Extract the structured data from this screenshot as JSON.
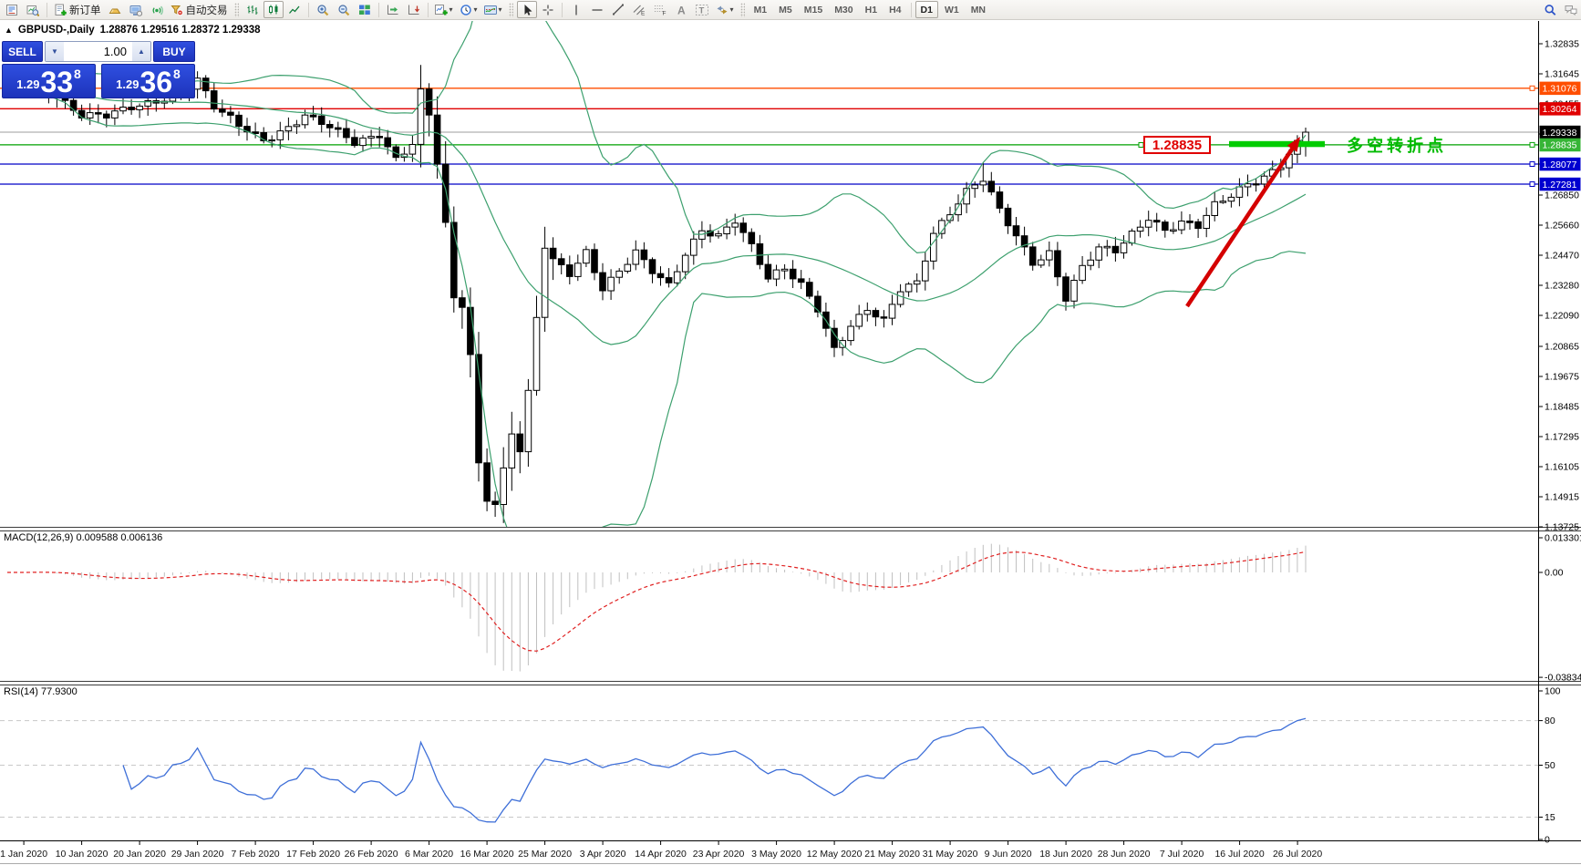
{
  "toolbar": {
    "items": [
      {
        "type": "icon",
        "name": "market-watch-icon"
      },
      {
        "type": "icon",
        "name": "data-window-icon"
      },
      {
        "type": "sep"
      },
      {
        "type": "icon-label",
        "name": "new-order-icon",
        "label": "新订单"
      },
      {
        "type": "icon",
        "name": "metaquotes-icon"
      },
      {
        "type": "icon",
        "name": "terminal-icon"
      },
      {
        "type": "icon",
        "name": "signals-icon"
      },
      {
        "type": "icon-label",
        "name": "autotrading-icon",
        "label": "自动交易"
      },
      {
        "type": "grip"
      },
      {
        "type": "icon",
        "name": "bar-chart-icon"
      },
      {
        "type": "icon",
        "name": "candlestick-chart-icon",
        "active": true
      },
      {
        "type": "icon",
        "name": "line-chart-icon"
      },
      {
        "type": "sep"
      },
      {
        "type": "icon",
        "name": "zoom-in-icon"
      },
      {
        "type": "icon",
        "name": "zoom-out-icon"
      },
      {
        "type": "icon",
        "name": "tile-windows-icon"
      },
      {
        "type": "sep"
      },
      {
        "type": "icon",
        "name": "chart-shift-icon"
      },
      {
        "type": "icon",
        "name": "auto-scroll-icon"
      },
      {
        "type": "sep"
      },
      {
        "type": "icon-dd",
        "name": "indicators-icon"
      },
      {
        "type": "icon-dd",
        "name": "periods-icon"
      },
      {
        "type": "icon-dd",
        "name": "templates-icon"
      },
      {
        "type": "grip"
      },
      {
        "type": "icon",
        "name": "cursor-icon",
        "active": true
      },
      {
        "type": "icon",
        "name": "crosshair-icon"
      },
      {
        "type": "sep"
      },
      {
        "type": "icon",
        "name": "vertical-line-icon"
      },
      {
        "type": "icon",
        "name": "horizontal-line-icon"
      },
      {
        "type": "icon",
        "name": "trendline-icon"
      },
      {
        "type": "icon",
        "name": "equidistant-channel-icon"
      },
      {
        "type": "icon",
        "name": "fibonacci-icon"
      },
      {
        "type": "icon",
        "name": "text-icon"
      },
      {
        "type": "icon",
        "name": "text-label-icon"
      },
      {
        "type": "icon-dd",
        "name": "arrows-icon"
      },
      {
        "type": "grip"
      },
      {
        "type": "tf",
        "label": "M1"
      },
      {
        "type": "tf",
        "label": "M5"
      },
      {
        "type": "tf",
        "label": "M15"
      },
      {
        "type": "tf",
        "label": "M30"
      },
      {
        "type": "tf",
        "label": "H1"
      },
      {
        "type": "tf",
        "label": "H4"
      },
      {
        "type": "sep"
      },
      {
        "type": "tf",
        "label": "D1",
        "active": true
      },
      {
        "type": "tf",
        "label": "W1"
      },
      {
        "type": "tf",
        "label": "MN"
      },
      {
        "type": "spacer"
      },
      {
        "type": "icon",
        "name": "search-icon"
      },
      {
        "type": "icon",
        "name": "chat-icon"
      }
    ]
  },
  "chart_header": {
    "collapse_glyph": "▲",
    "symbol_period": "GBPUSD-,Daily",
    "ohlc": "1.28876 1.29516 1.28372 1.29338"
  },
  "trade_panel": {
    "sell_label": "SELL",
    "buy_label": "BUY",
    "volume": "1.00",
    "stepper_down_glyph": "▼",
    "stepper_up_glyph": "▲",
    "sell_price": {
      "small": "1.29",
      "big": "33",
      "sup": "8"
    },
    "buy_price": {
      "small": "1.29",
      "big": "36",
      "sup": "8"
    }
  },
  "annotations": {
    "price_box_text": "1.28835",
    "note_text": "多空转折点",
    "thick_bar_color": "#00cc00",
    "arrow_color": "#d40000"
  },
  "indicator_labels": {
    "macd": "MACD(12,26,9) 0.009588 0.006136",
    "rsi": "RSI(14) 77.9300"
  },
  "chart_data": {
    "type": "candlestick",
    "symbol": "GBPUSD-",
    "timeframe": "Daily",
    "last_bar": {
      "open": 1.28876,
      "high": 1.29516,
      "low": 1.28372,
      "close": 1.29338
    },
    "bars_count": 158,
    "price_axis_ticks": [
      "1.32835",
      "1.31645",
      "1.30455",
      "1.29265",
      "1.28075",
      "1.26850",
      "1.25660",
      "1.24470",
      "1.23280",
      "1.22090",
      "1.20865",
      "1.19675",
      "1.18485",
      "1.17295",
      "1.16105",
      "1.14915",
      "1.13725"
    ],
    "price_axis_top": 1.32835,
    "price_axis_bottom": 1.13725,
    "x_axis_dates": [
      "1 Jan 2020",
      "10 Jan 2020",
      "20 Jan 2020",
      "29 Jan 2020",
      "7 Feb 2020",
      "17 Feb 2020",
      "26 Feb 2020",
      "6 Mar 2020",
      "16 Mar 2020",
      "25 Mar 2020",
      "3 Apr 2020",
      "14 Apr 2020",
      "23 Apr 2020",
      "3 May 2020",
      "12 May 2020",
      "21 May 2020",
      "31 May 2020",
      "9 Jun 2020",
      "18 Jun 2020",
      "28 Jun 2020",
      "7 Jul 2020",
      "16 Jul 2020",
      "26 Jul 2020"
    ],
    "close_path_anchors": [
      [
        0,
        1.3095
      ],
      [
        3,
        1.313
      ],
      [
        6,
        1.308
      ],
      [
        9,
        1.3
      ],
      [
        12,
        1.2995
      ],
      [
        15,
        1.303
      ],
      [
        18,
        1.306
      ],
      [
        21,
        1.3095
      ],
      [
        23,
        1.314
      ],
      [
        25,
        1.303
      ],
      [
        28,
        1.296
      ],
      [
        31,
        1.2905
      ],
      [
        34,
        1.2955
      ],
      [
        36,
        1.3
      ],
      [
        39,
        1.295
      ],
      [
        42,
        1.289
      ],
      [
        45,
        1.293
      ],
      [
        47,
        1.283
      ],
      [
        49,
        1.289
      ],
      [
        50,
        1.309
      ],
      [
        51,
        1.3
      ],
      [
        52,
        1.281
      ],
      [
        53,
        1.256
      ],
      [
        54,
        1.227
      ],
      [
        55,
        1.225
      ],
      [
        56,
        1.205
      ],
      [
        57,
        1.162
      ],
      [
        58,
        1.149
      ],
      [
        59,
        1.147
      ],
      [
        60,
        1.16
      ],
      [
        61,
        1.175
      ],
      [
        62,
        1.168
      ],
      [
        63,
        1.19
      ],
      [
        64,
        1.2195
      ],
      [
        65,
        1.248
      ],
      [
        66,
        1.242
      ],
      [
        68,
        1.237
      ],
      [
        70,
        1.246
      ],
      [
        72,
        1.232
      ],
      [
        74,
        1.239
      ],
      [
        76,
        1.246
      ],
      [
        78,
        1.238
      ],
      [
        80,
        1.232
      ],
      [
        82,
        1.245
      ],
      [
        84,
        1.255
      ],
      [
        86,
        1.253
      ],
      [
        88,
        1.259
      ],
      [
        90,
        1.248
      ],
      [
        92,
        1.235
      ],
      [
        94,
        1.239
      ],
      [
        96,
        1.233
      ],
      [
        98,
        1.224
      ],
      [
        100,
        1.208
      ],
      [
        102,
        1.217
      ],
      [
        104,
        1.223
      ],
      [
        106,
        1.218
      ],
      [
        108,
        1.231
      ],
      [
        110,
        1.234
      ],
      [
        112,
        1.254
      ],
      [
        114,
        1.262
      ],
      [
        116,
        1.27
      ],
      [
        118,
        1.2745
      ],
      [
        120,
        1.262
      ],
      [
        122,
        1.252
      ],
      [
        124,
        1.242
      ],
      [
        126,
        1.246
      ],
      [
        128,
        1.228
      ],
      [
        130,
        1.24
      ],
      [
        132,
        1.247
      ],
      [
        134,
        1.246
      ],
      [
        136,
        1.253
      ],
      [
        138,
        1.26
      ],
      [
        140,
        1.255
      ],
      [
        142,
        1.258
      ],
      [
        144,
        1.256
      ],
      [
        146,
        1.264
      ],
      [
        148,
        1.268
      ],
      [
        150,
        1.273
      ],
      [
        152,
        1.276
      ],
      [
        154,
        1.281
      ],
      [
        155,
        1.285
      ],
      [
        156,
        1.289
      ],
      [
        157,
        1.29338
      ]
    ],
    "special_bars": {
      "spike_high_index": 50,
      "spike_high": 1.32,
      "crash_low_index": 59,
      "crash_low": 1.1412,
      "june_high_index": 118,
      "june_high": 1.2813,
      "may_low_index": 100,
      "may_low": 1.2075
    },
    "levels": [
      {
        "price": "1.31076",
        "value": 1.31076,
        "line_color": "#ff4e00",
        "tag_bg": "#ff4e00",
        "anchor_square": true
      },
      {
        "price": "1.30264",
        "value": 1.30264,
        "line_color": "#e00000",
        "tag_bg": "#e00000",
        "anchor_square": false
      },
      {
        "price": "1.29338",
        "value": 1.29338,
        "line_color": "#9e9e9e",
        "tag_bg": "#000000",
        "anchor_square": false
      },
      {
        "price": "1.28835",
        "value": 1.28835,
        "line_color": "#00a000",
        "tag_bg": "#36b536",
        "anchor_square": true
      },
      {
        "price": "1.28077",
        "value": 1.28077,
        "line_color": "#0000c8",
        "tag_bg": "#0000d0",
        "anchor_square": true
      },
      {
        "price": "1.27281",
        "value": 1.27281,
        "line_color": "#0000c8",
        "tag_bg": "#0000d0",
        "anchor_square": true
      }
    ],
    "indicators": {
      "bollinger": {
        "period": 20,
        "deviation": 2,
        "color": "#3da06e"
      },
      "macd": {
        "params": [
          12,
          26,
          9
        ],
        "main": 0.009588,
        "signal": 0.006136,
        "axis_ticks": [
          "0.013301",
          "0.00",
          "-0.038343"
        ],
        "axis_values": [
          0.013301,
          0,
          -0.038343
        ],
        "hist_color": "#c0c0c0",
        "signal_color": "#e02020"
      },
      "rsi": {
        "period": 14,
        "value": 77.93,
        "axis_ticks": [
          "100",
          "80",
          "50",
          "15",
          "0"
        ],
        "axis_values": [
          100,
          80,
          50,
          15,
          0
        ],
        "levels": [
          80,
          50,
          15
        ],
        "color": "#3e6fd8"
      }
    },
    "candle_colors": {
      "bull_fill": "#ffffff",
      "bear_fill": "#000000",
      "outline": "#000000"
    }
  }
}
